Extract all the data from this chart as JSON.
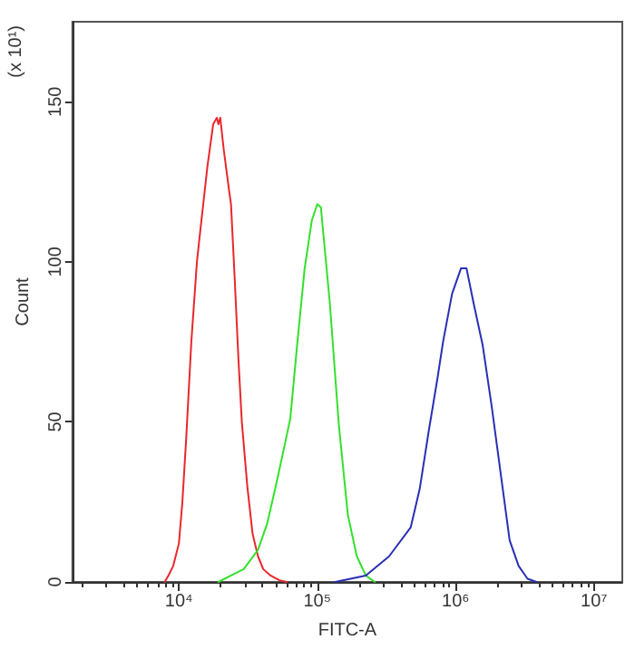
{
  "chart_data": {
    "type": "line",
    "xlabel": "FITC-A",
    "ylabel": "Count",
    "annotations": [
      "(x 10¹)"
    ],
    "log": "x",
    "grid": false,
    "marker": "none",
    "line_style": "solid",
    "xlim": [
      1700,
      16000000
    ],
    "xticks": [
      {
        "value": 10000,
        "label": "10⁴"
      },
      {
        "value": 100000,
        "label": "10⁵"
      },
      {
        "value": 1000000,
        "label": "10⁶"
      },
      {
        "value": 10000000,
        "label": "10⁷"
      }
    ],
    "ylim": [
      0,
      175
    ],
    "yticks": [
      0,
      50,
      100,
      150
    ],
    "series": [
      {
        "color": "#e8282d",
        "x": [
          7900,
          8400,
          9100,
          10000,
          10600,
          11300,
          12300,
          13500,
          14300,
          16100,
          17700,
          18800,
          19300,
          19900,
          21100,
          23100,
          23800,
          25300,
          26900,
          28500,
          31200,
          34100,
          37300,
          40700,
          45900,
          53300,
          60100
        ],
        "values": [
          0,
          2,
          5,
          12,
          25,
          45,
          75,
          100,
          110,
          130,
          143,
          145,
          143,
          145,
          135,
          122,
          118,
          95,
          70,
          50,
          30,
          15,
          8,
          4,
          2,
          0.5,
          0
        ]
      },
      {
        "color": "#33e02c",
        "x": [
          19300,
          23800,
          29400,
          37300,
          43300,
          50200,
          58300,
          63800,
          71900,
          81100,
          91400,
          100000,
          106200,
          109400,
          123300,
          143200,
          166300,
          193100,
          224200,
          260400
        ],
        "values": [
          0,
          2,
          4,
          10,
          18,
          30,
          43,
          51,
          75,
          98,
          113,
          118,
          117,
          111,
          87,
          49,
          21,
          8,
          2,
          0
        ]
      },
      {
        "color": "#2a2fb5",
        "x": [
          134900,
          224200,
          330400,
          473000,
          549500,
          638300,
          741300,
          810900,
          941900,
          1094000,
          1197000,
          1349000,
          1567000,
          1820000,
          2113000,
          2455000,
          2851000,
          3306000,
          3837000
        ],
        "values": [
          0,
          2,
          8,
          17,
          29,
          47,
          64,
          75,
          90,
          98,
          98,
          87,
          74,
          55,
          34,
          13,
          5,
          1,
          0
        ]
      }
    ]
  }
}
